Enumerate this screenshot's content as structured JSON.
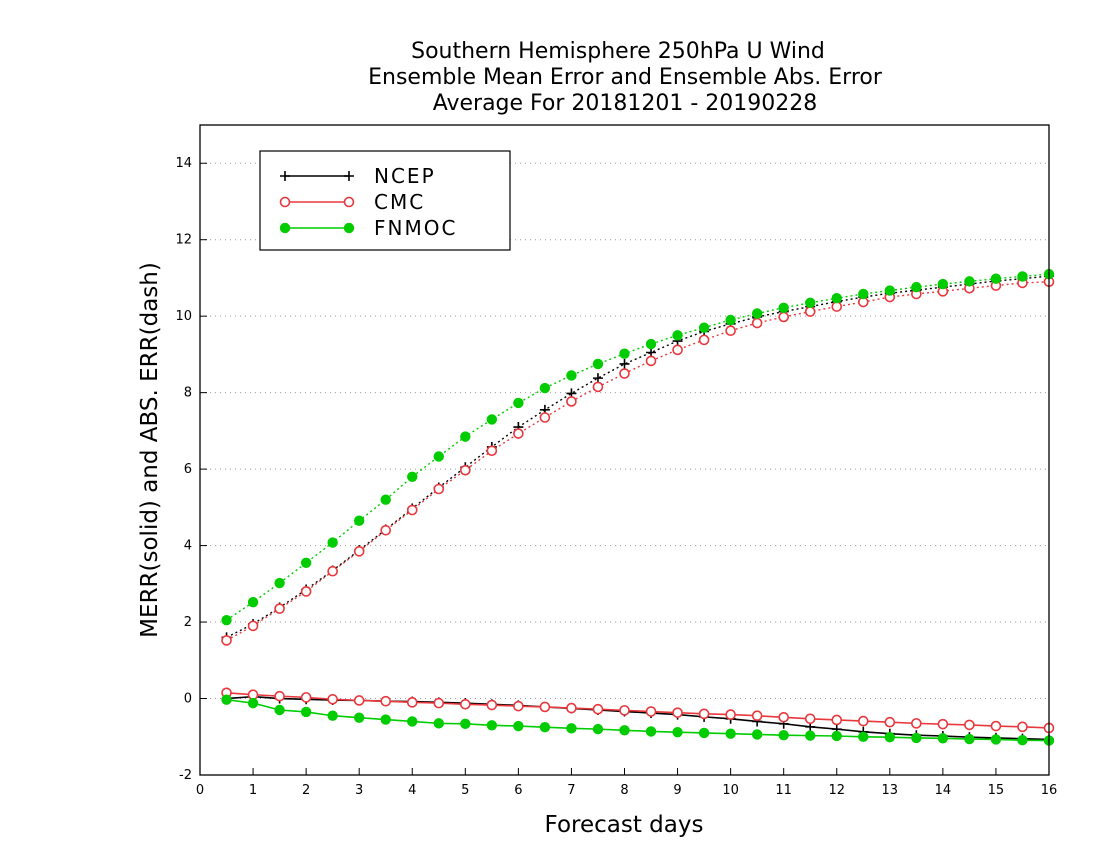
{
  "chart_data": {
    "type": "line",
    "title": [
      "Southern Hemisphere 250hPa U Wind",
      "Ensemble Mean Error and Ensemble Abs. Error",
      "Average For 20181201 - 20190228"
    ],
    "xlabel": "Forecast days",
    "ylabel": "MERR(solid) and ABS. ERR(dash)",
    "xlim": [
      0,
      16
    ],
    "ylim": [
      -2,
      15
    ],
    "xticks": [
      0,
      1,
      2,
      3,
      4,
      5,
      6,
      7,
      8,
      9,
      10,
      11,
      12,
      13,
      14,
      15,
      16
    ],
    "yticks": [
      -2,
      0,
      2,
      4,
      6,
      8,
      10,
      12,
      14
    ],
    "grid": "horizontal dotted",
    "legend_position": "top-left",
    "x": [
      0.5,
      1.0,
      1.5,
      2.0,
      2.5,
      3.0,
      3.5,
      4.0,
      4.5,
      5.0,
      5.5,
      6.0,
      6.5,
      7.0,
      7.5,
      8.0,
      8.5,
      9.0,
      9.5,
      10.0,
      10.5,
      11.0,
      11.5,
      12.0,
      12.5,
      13.0,
      13.5,
      14.0,
      14.5,
      15.0,
      15.5,
      16.0
    ],
    "series": [
      {
        "name": "NCEP",
        "color": "#000000",
        "marker": "plus",
        "merr": [
          0.0,
          0.05,
          0.0,
          -0.02,
          -0.04,
          -0.05,
          -0.07,
          -0.08,
          -0.1,
          -0.12,
          -0.15,
          -0.18,
          -0.22,
          -0.26,
          -0.3,
          -0.34,
          -0.38,
          -0.42,
          -0.48,
          -0.53,
          -0.6,
          -0.66,
          -0.74,
          -0.8,
          -0.87,
          -0.92,
          -0.96,
          -0.98,
          -1.01,
          -1.03,
          -1.05,
          -1.07
        ],
        "abs_err": [
          1.6,
          1.95,
          2.38,
          2.85,
          3.35,
          3.88,
          4.42,
          4.97,
          5.52,
          6.05,
          6.58,
          7.1,
          7.55,
          7.98,
          8.38,
          8.75,
          9.05,
          9.35,
          9.6,
          9.8,
          9.98,
          10.12,
          10.25,
          10.38,
          10.5,
          10.6,
          10.68,
          10.76,
          10.84,
          10.92,
          10.98,
          11.05
        ]
      },
      {
        "name": "CMC",
        "color": "#e8383d",
        "marker": "open-circle",
        "merr": [
          0.15,
          0.1,
          0.06,
          0.03,
          -0.02,
          -0.05,
          -0.07,
          -0.1,
          -0.12,
          -0.15,
          -0.17,
          -0.2,
          -0.22,
          -0.25,
          -0.28,
          -0.31,
          -0.34,
          -0.37,
          -0.4,
          -0.42,
          -0.45,
          -0.49,
          -0.53,
          -0.56,
          -0.59,
          -0.62,
          -0.65,
          -0.67,
          -0.69,
          -0.72,
          -0.74,
          -0.77
        ],
        "abs_err": [
          1.52,
          1.9,
          2.35,
          2.8,
          3.33,
          3.85,
          4.4,
          4.93,
          5.48,
          5.97,
          6.48,
          6.93,
          7.35,
          7.77,
          8.15,
          8.5,
          8.83,
          9.12,
          9.38,
          9.62,
          9.82,
          9.98,
          10.12,
          10.25,
          10.37,
          10.5,
          10.58,
          10.65,
          10.73,
          10.8,
          10.87,
          10.9
        ]
      },
      {
        "name": "FNMOC",
        "color": "#00cc00",
        "marker": "filled-circle",
        "merr": [
          -0.03,
          -0.12,
          -0.3,
          -0.35,
          -0.45,
          -0.5,
          -0.55,
          -0.6,
          -0.65,
          -0.66,
          -0.7,
          -0.72,
          -0.75,
          -0.78,
          -0.8,
          -0.83,
          -0.86,
          -0.88,
          -0.9,
          -0.92,
          -0.94,
          -0.96,
          -0.97,
          -0.98,
          -1.0,
          -1.01,
          -1.03,
          -1.04,
          -1.06,
          -1.07,
          -1.09,
          -1.1
        ],
        "abs_err": [
          2.05,
          2.52,
          3.02,
          3.55,
          4.08,
          4.65,
          5.2,
          5.8,
          6.33,
          6.85,
          7.3,
          7.73,
          8.12,
          8.45,
          8.75,
          9.02,
          9.27,
          9.5,
          9.7,
          9.9,
          10.07,
          10.22,
          10.35,
          10.47,
          10.58,
          10.67,
          10.76,
          10.84,
          10.91,
          10.98,
          11.04,
          11.1
        ]
      }
    ]
  }
}
